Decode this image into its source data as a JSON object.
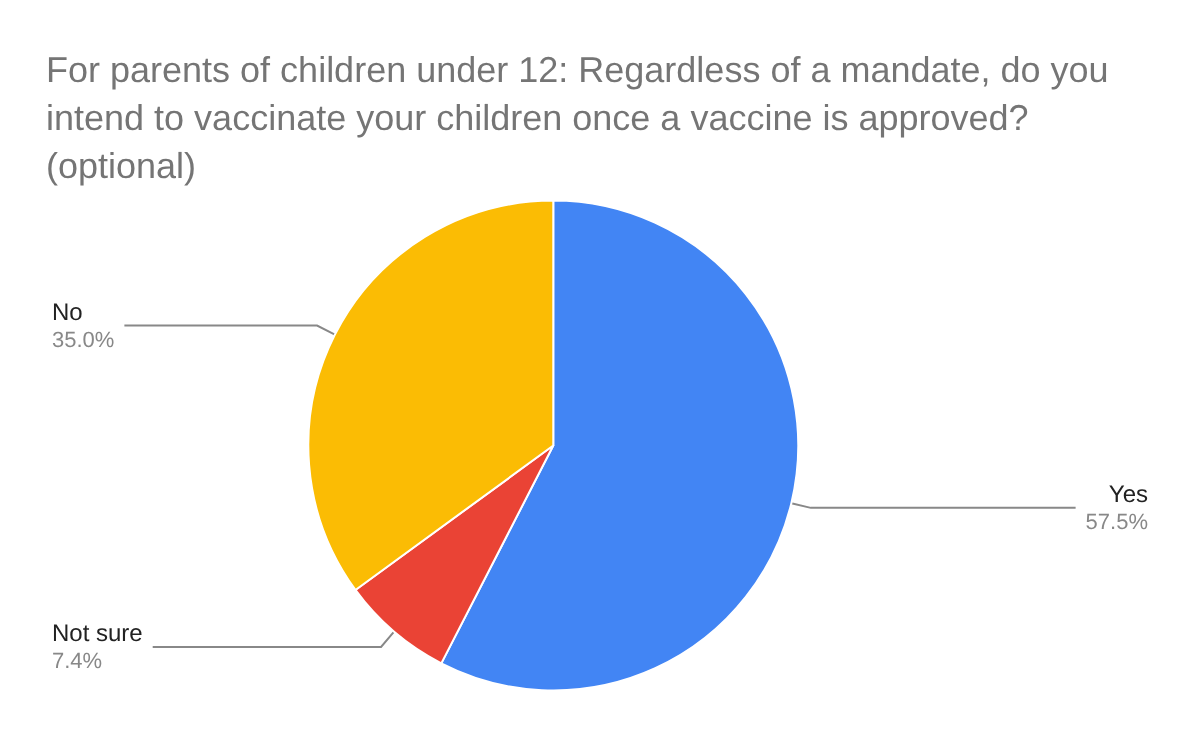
{
  "chart_data": {
    "type": "pie",
    "title": "For parents of children under 12: Regardless of a mandate, do you intend to vaccinate your children once a vaccine is approved? (optional)",
    "categories": [
      "Yes",
      "Not sure",
      "No"
    ],
    "values": [
      57.5,
      7.4,
      35.0
    ],
    "colors": [
      "#4285f4",
      "#ea4335",
      "#fbbc04"
    ],
    "value_labels": [
      "57.5%",
      "7.4%",
      "35.0%"
    ],
    "legend": false
  }
}
